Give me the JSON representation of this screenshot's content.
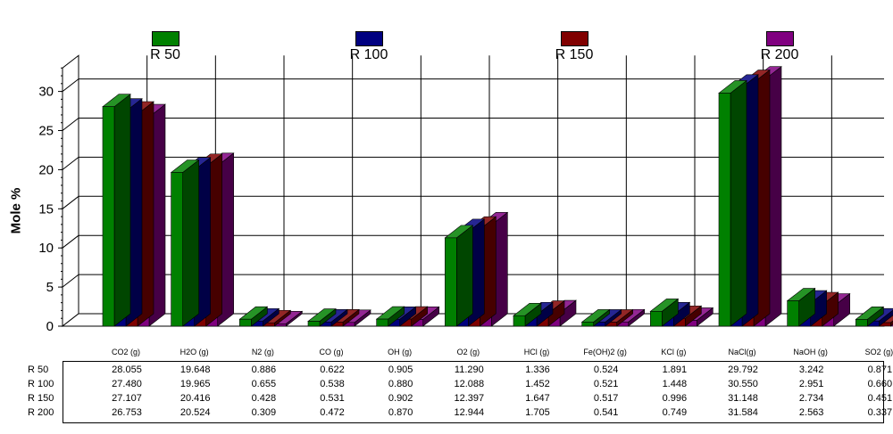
{
  "chart_data": {
    "type": "bar",
    "ylabel": "Mole %",
    "ylim": [
      0,
      33
    ],
    "yticks": [
      "0",
      "5",
      "10",
      "15",
      "20",
      "25",
      "30"
    ],
    "categories": [
      "CO2 (g)",
      "H2O (g)",
      "N2 (g)",
      "CO (g)",
      "OH (g)",
      "O2 (g)",
      "HCl (g)",
      "Fe(OH)2 (g)",
      "KCl (g)",
      "NaCl(g)",
      "NaOH (g)",
      "SO2 (g)"
    ],
    "series": [
      {
        "name": "R 50",
        "color": "#008000",
        "values": [
          28.055,
          19.648,
          0.886,
          0.622,
          0.905,
          11.29,
          1.336,
          0.524,
          1.891,
          29.792,
          3.242,
          0.871
        ],
        "labels": [
          "28.055",
          "19.648",
          "0.886",
          "0.622",
          "0.905",
          "11.290",
          "1.336",
          "0.524",
          "1.891",
          "29.792",
          "3.242",
          "0.871"
        ]
      },
      {
        "name": "R 100",
        "color": "#000080",
        "values": [
          27.48,
          19.965,
          0.655,
          0.538,
          0.88,
          12.088,
          1.452,
          0.521,
          1.448,
          30.55,
          2.951,
          0.66
        ],
        "labels": [
          "27.480",
          "19.965",
          "0.655",
          "0.538",
          "0.880",
          "12.088",
          "1.452",
          "0.521",
          "1.448",
          "30.550",
          "2.951",
          "0.660"
        ]
      },
      {
        "name": "R 150",
        "color": "#800000",
        "values": [
          27.107,
          20.416,
          0.428,
          0.531,
          0.902,
          12.397,
          1.647,
          0.517,
          0.996,
          31.148,
          2.734,
          0.451
        ],
        "labels": [
          "27.107",
          "20.416",
          "0.428",
          "0.531",
          "0.902",
          "12.397",
          "1.647",
          "0.517",
          "0.996",
          "31.148",
          "2.734",
          "0.451"
        ]
      },
      {
        "name": "R 200",
        "color": "#800080",
        "values": [
          26.753,
          20.524,
          0.309,
          0.472,
          0.87,
          12.944,
          1.705,
          0.541,
          0.749,
          31.584,
          2.563,
          0.337
        ],
        "labels": [
          "26.753",
          "20.524",
          "0.309",
          "0.472",
          "0.870",
          "12.944",
          "1.705",
          "0.541",
          "0.749",
          "31.584",
          "2.563",
          "0.337"
        ]
      }
    ],
    "grid": true,
    "legend": "top",
    "style": "3d-clustered-bar"
  }
}
